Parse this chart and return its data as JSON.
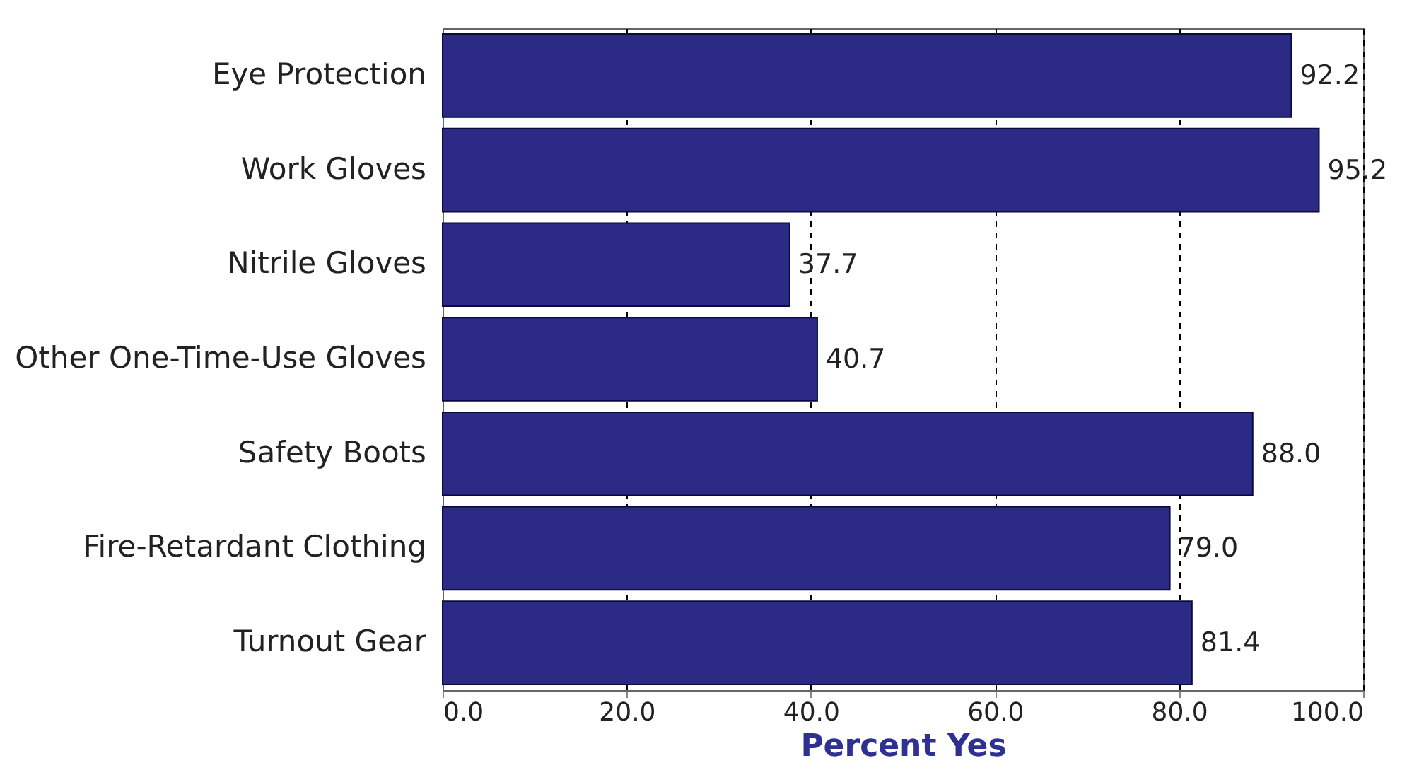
{
  "chart_data": {
    "type": "bar",
    "orientation": "horizontal",
    "categories": [
      "Eye Protection",
      "Work Gloves",
      "Nitrile Gloves",
      "Other One-Time-Use Gloves",
      "Safety Boots",
      "Fire-Retardant Clothing",
      "Turnout Gear"
    ],
    "values": [
      92.2,
      95.2,
      37.7,
      40.7,
      88.0,
      79.0,
      81.4
    ],
    "value_labels": [
      "92.2",
      "95.2",
      "37.7",
      "40.7",
      "88.0",
      "79.0",
      "81.4"
    ],
    "color": "#2b2b86",
    "xlabel": "Percent Yes",
    "xlim": [
      0,
      100
    ],
    "xticks": [
      {
        "value": 0,
        "label": "0.0"
      },
      {
        "value": 20,
        "label": "20.0"
      },
      {
        "value": 40,
        "label": "40.0"
      },
      {
        "value": 60,
        "label": "60.0"
      },
      {
        "value": 80,
        "label": "80.0"
      },
      {
        "value": 100,
        "label": "100.0"
      }
    ],
    "grid": "x",
    "line_style": "dashed"
  }
}
